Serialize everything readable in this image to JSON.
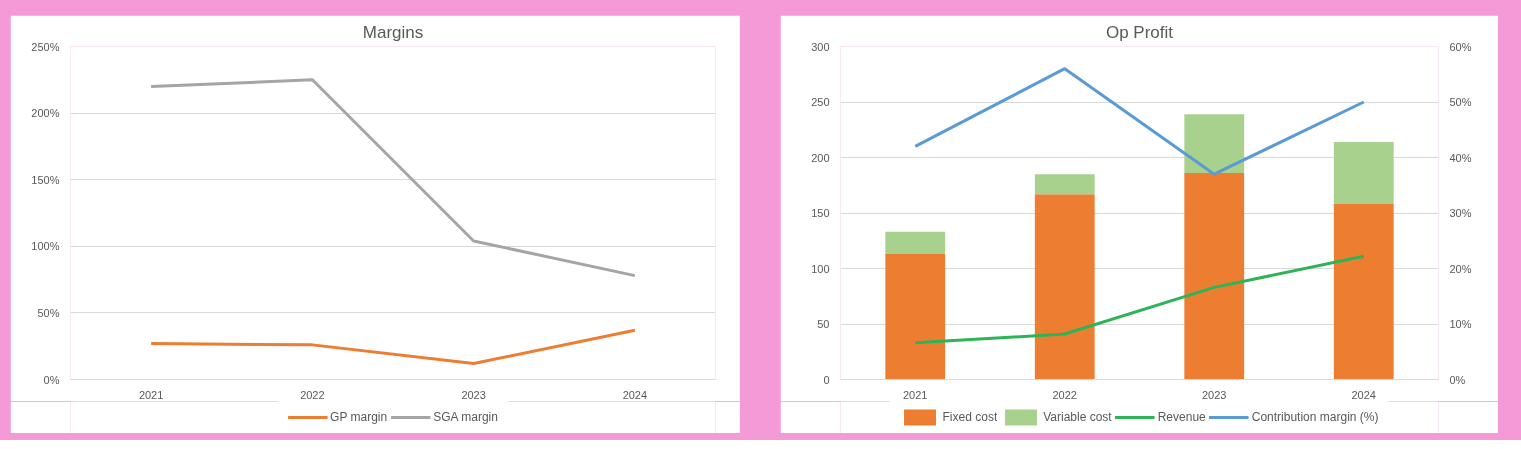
{
  "chart_data": [
    {
      "type": "line",
      "title": "Margins",
      "categories": [
        "2021",
        "2022",
        "2023",
        "2024"
      ],
      "series": [
        {
          "name": "GP margin",
          "color": "#ed7d31",
          "values": [
            27,
            26,
            12,
            37
          ]
        },
        {
          "name": "SGA margin",
          "color": "#a5a5a5",
          "values": [
            220,
            225,
            104,
            78
          ]
        }
      ],
      "ylim": [
        0,
        250
      ],
      "yticks": [
        {
          "value": 0,
          "label": "0%"
        },
        {
          "value": 50,
          "label": "50%"
        },
        {
          "value": 100,
          "label": "100%"
        },
        {
          "value": 150,
          "label": "150%"
        },
        {
          "value": 200,
          "label": "200%"
        },
        {
          "value": 250,
          "label": "250%"
        }
      ],
      "grid": "y",
      "legend": "bottom",
      "marker": "none",
      "line_style": "solid"
    },
    {
      "type": "bar",
      "title": "Op Profit",
      "categories": [
        "2021",
        "2022",
        "2023",
        "2024"
      ],
      "stacked": true,
      "series": [
        {
          "name": "Fixed cost",
          "color": "#ed7d31",
          "values": [
            113,
            167,
            186,
            158
          ]
        },
        {
          "name": "Variable cost",
          "color": "#a9d18e",
          "values": [
            20,
            18,
            53,
            56
          ]
        },
        {
          "name": "Revenue",
          "type": "line",
          "color": "#2eb457",
          "values": [
            33,
            41,
            83,
            111
          ]
        },
        {
          "name": "Contribution margin (%)",
          "type": "line",
          "axis": "y2",
          "color": "#5b9bd5",
          "values": [
            42,
            56,
            37,
            50
          ]
        }
      ],
      "ylim": [
        0,
        300
      ],
      "yticks": [
        0,
        50,
        100,
        150,
        200,
        250,
        300
      ],
      "y2lim": [
        0,
        60
      ],
      "y2ticks": [
        {
          "value": 0,
          "label": "0%"
        },
        {
          "value": 10,
          "label": "10%"
        },
        {
          "value": 20,
          "label": "20%"
        },
        {
          "value": 30,
          "label": "30%"
        },
        {
          "value": 40,
          "label": "40%"
        },
        {
          "value": 50,
          "label": "50%"
        },
        {
          "value": 60,
          "label": "60%"
        }
      ],
      "grid": "y",
      "legend": "bottom",
      "marker": "none",
      "line_style": "solid"
    }
  ]
}
